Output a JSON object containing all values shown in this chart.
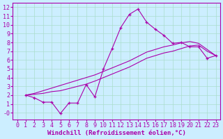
{
  "xlabel": "Windchill (Refroidissement éolien,°C)",
  "background_color": "#cceeff",
  "line_color": "#aa00aa",
  "grid_color": "#aaddcc",
  "font_color": "#aa00aa",
  "xlim": [
    -0.5,
    23.5
  ],
  "ylim": [
    -0.8,
    12.5
  ],
  "xticks": [
    0,
    1,
    2,
    3,
    4,
    5,
    6,
    7,
    8,
    9,
    10,
    11,
    12,
    13,
    14,
    15,
    16,
    17,
    18,
    19,
    20,
    21,
    22,
    23
  ],
  "yticks": [
    0,
    1,
    2,
    3,
    4,
    5,
    6,
    7,
    8,
    9,
    10,
    11,
    12
  ],
  "ytick_labels": [
    "-0",
    "1",
    "2",
    "3",
    "4",
    "5",
    "6",
    "7",
    "8",
    "9",
    "10",
    "11",
    "12"
  ],
  "line1_x": [
    1,
    2,
    3,
    4,
    5,
    6,
    7,
    8,
    9,
    10,
    11,
    12,
    13,
    14,
    15,
    16,
    17,
    18,
    19,
    20,
    21,
    22,
    23
  ],
  "line1_y": [
    2.0,
    1.7,
    1.2,
    1.2,
    -0.1,
    1.1,
    1.1,
    3.2,
    1.8,
    5.0,
    7.3,
    9.7,
    11.2,
    11.8,
    10.3,
    9.5,
    8.8,
    7.9,
    8.0,
    7.5,
    7.5,
    6.2,
    6.5
  ],
  "line2_x": [
    1,
    2,
    3,
    4,
    5,
    6,
    7,
    8,
    9,
    10,
    11,
    12,
    13,
    14,
    15,
    16,
    17,
    18,
    19,
    20,
    21,
    22,
    23
  ],
  "line2_y": [
    2.0,
    2.1,
    2.2,
    2.4,
    2.5,
    2.75,
    3.0,
    3.25,
    3.6,
    4.0,
    4.4,
    4.8,
    5.2,
    5.7,
    6.2,
    6.5,
    6.8,
    7.0,
    7.3,
    7.6,
    7.7,
    7.0,
    6.5
  ],
  "line3_x": [
    1,
    2,
    3,
    4,
    5,
    6,
    7,
    8,
    9,
    10,
    11,
    12,
    13,
    14,
    15,
    16,
    17,
    18,
    19,
    20,
    21,
    22,
    23
  ],
  "line3_y": [
    2.0,
    2.2,
    2.5,
    2.8,
    3.1,
    3.4,
    3.7,
    4.0,
    4.3,
    4.7,
    5.1,
    5.5,
    5.9,
    6.4,
    6.9,
    7.2,
    7.5,
    7.7,
    7.95,
    8.1,
    7.9,
    7.2,
    6.5
  ],
  "font_size": 6,
  "xlabel_fontsize": 6.5
}
